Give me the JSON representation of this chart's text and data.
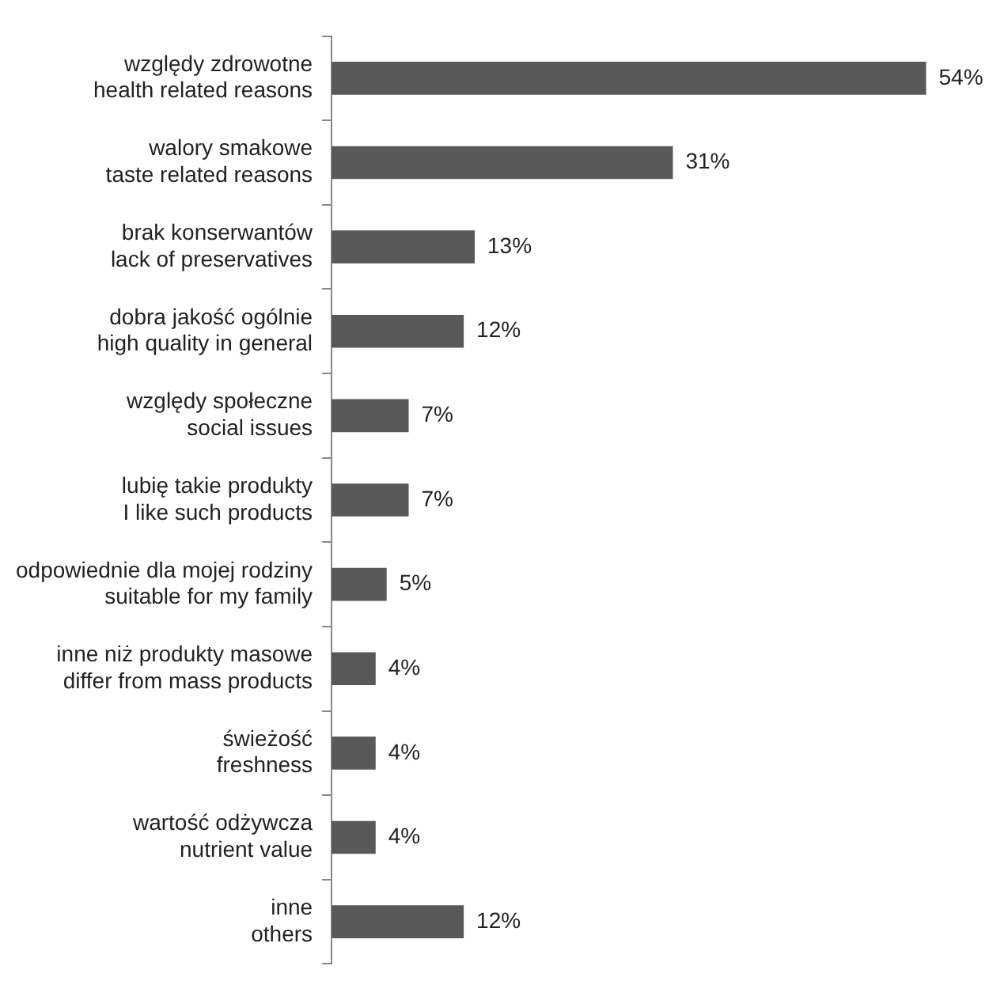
{
  "chart_data": {
    "type": "bar",
    "orientation": "horizontal",
    "data_labels": true,
    "color": "#595959",
    "categories": [
      "względy zdrowotne\nhealth related reasons",
      "walory smakowe\ntaste related reasons",
      "brak konserwantów\nlack of preservatives",
      "dobra jakość ogólnie\nhigh quality in general",
      "względy społeczne\nsocial issues",
      "lubię takie produkty\nI like such products",
      "odpowiednie dla mojej rodziny\nsuitable for my family",
      "inne niż produkty masowe\ndiffer from mass products",
      "świeżość\nfreshness",
      "wartość odżywcza\nnutrient value",
      "inne\nothers"
    ],
    "values": [
      54,
      31,
      13,
      12,
      7,
      7,
      5,
      4,
      4,
      4,
      12
    ],
    "value_labels": [
      "54%",
      "31%",
      "13%",
      "12%",
      "7%",
      "7%",
      "5%",
      "4%",
      "4%",
      "4%",
      "12%"
    ]
  }
}
